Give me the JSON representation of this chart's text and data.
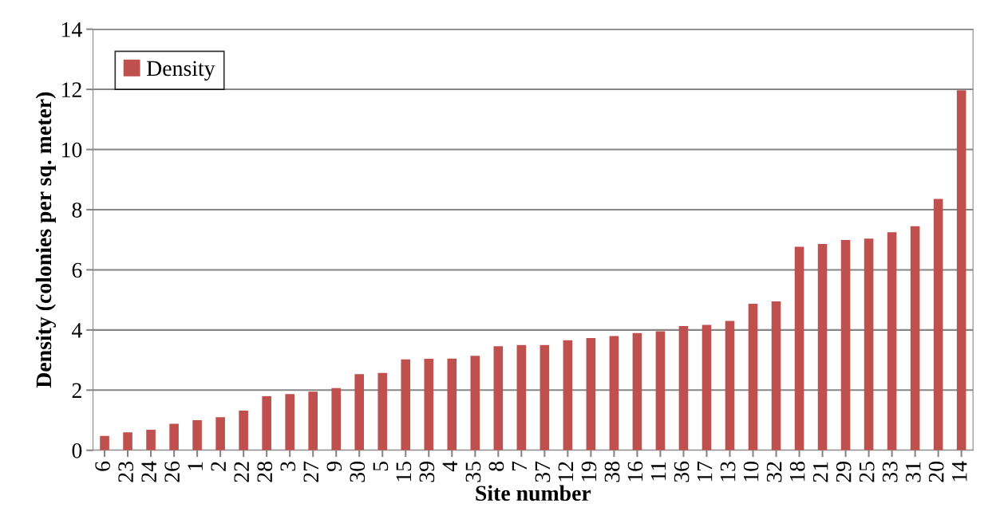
{
  "chart_data": {
    "type": "bar",
    "xlabel": "Site number",
    "ylabel": "Density (colonies per sq. meter)",
    "categories": [
      "6",
      "23",
      "24",
      "26",
      "1",
      "2",
      "22",
      "28",
      "3",
      "27",
      "9",
      "30",
      "5",
      "15",
      "39",
      "4",
      "35",
      "8",
      "7",
      "37",
      "12",
      "19",
      "38",
      "16",
      "11",
      "36",
      "17",
      "13",
      "10",
      "32",
      "18",
      "21",
      "29",
      "25",
      "33",
      "31",
      "20",
      "14"
    ],
    "series": [
      {
        "name": "Density",
        "color": "#c0504d",
        "values": [
          0.48,
          0.6,
          0.68,
          0.88,
          1.0,
          1.1,
          1.32,
          1.8,
          1.87,
          1.95,
          2.07,
          2.53,
          2.57,
          3.02,
          3.04,
          3.05,
          3.14,
          3.46,
          3.5,
          3.5,
          3.66,
          3.73,
          3.8,
          3.9,
          3.96,
          4.13,
          4.17,
          4.3,
          4.87,
          4.95,
          6.77,
          6.86,
          6.99,
          7.04,
          7.25,
          7.45,
          8.36,
          11.97
        ]
      }
    ],
    "ylim": [
      0,
      14
    ],
    "yticks": [
      0,
      2,
      4,
      6,
      8,
      10,
      12,
      14
    ],
    "grid": "y",
    "legend": "top left"
  }
}
